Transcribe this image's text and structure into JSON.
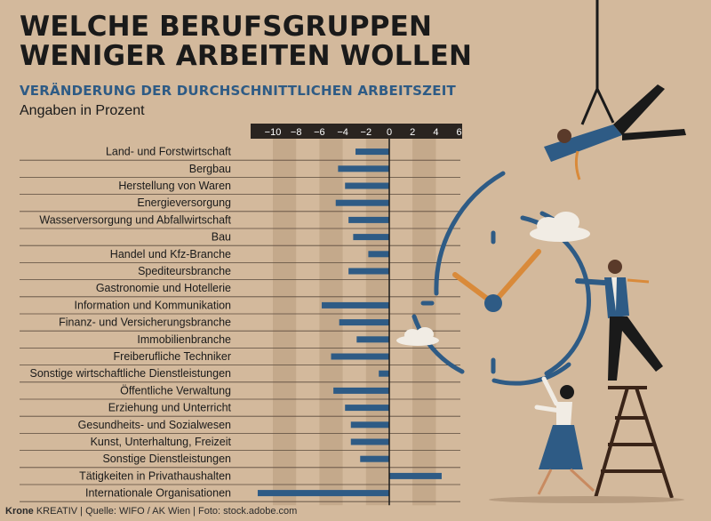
{
  "header": {
    "title_line1": "WELCHE BERUFSGRUPPEN",
    "title_line2": "WENIGER ARBEITEN WOLLEN",
    "subtitle": "VERÄNDERUNG DER DURCHSCHNITTLICHEN ARBEITSZEIT",
    "unit_note": "Angaben in Prozent"
  },
  "footer": {
    "brand": "Krone",
    "brand_suffix": "KREATIV",
    "source": "| Quelle: WIFO / AK Wien | Foto: stock.adobe.com"
  },
  "colors": {
    "background": "#d3b99c",
    "bar": "#2e5b85",
    "band": "#c4a98b",
    "axis_header": "#2a2420",
    "rule": "#5a4a3c"
  },
  "chart_data": {
    "type": "bar",
    "orientation": "horizontal",
    "title": "VERÄNDERUNG DER DURCHSCHNITTLICHEN ARBEITSZEIT",
    "xlabel": "Angaben in Prozent",
    "xlim": [
      -11,
      6.5
    ],
    "xticks": [
      -10,
      -8,
      -6,
      -4,
      -2,
      0,
      2,
      4,
      6
    ],
    "xtick_labels": [
      "−10",
      "−8",
      "−6",
      "−4",
      "−2",
      "0",
      "2",
      "4",
      "6"
    ],
    "categories": [
      "Land- und Forstwirtschaft",
      "Bergbau",
      "Herstellung von Waren",
      "Energieversorgung",
      "Wasserversorgung und Abfallwirtschaft",
      "Bau",
      "Handel und Kfz-Branche",
      "Spediteursbranche",
      "Gastronomie und Hotellerie",
      "Information und Kommunikation",
      "Finanz- und Versicherungsbranche",
      "Immobilienbranche",
      "Freiberufliche Techniker",
      "Sonstige wirtschaftliche Dienstleistungen",
      "Öffentliche Verwaltung",
      "Erziehung und Unterricht",
      "Gesundheits- und Sozialwesen",
      "Kunst, Unterhaltung, Freizeit",
      "Sonstige Dienstleistungen",
      "Tätigkeiten in Privathaushalten",
      "Internationale Organisationen"
    ],
    "values": [
      -2.9,
      -4.4,
      -3.8,
      -4.6,
      -3.5,
      -3.1,
      -1.8,
      -3.5,
      0.0,
      -5.8,
      -4.3,
      -2.8,
      -5.0,
      -0.9,
      -4.8,
      -3.8,
      -3.3,
      -3.3,
      -2.5,
      4.5,
      -11.3
    ],
    "grid": "alternating vertical bands",
    "legend": "none"
  }
}
